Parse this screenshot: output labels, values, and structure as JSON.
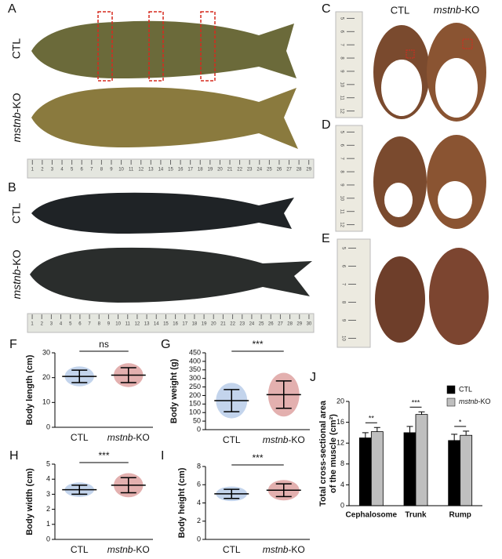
{
  "panel_a": {
    "label": "A",
    "rows": [
      "CTL",
      {
        "gene": "mstnb",
        "suffix": "-KO"
      }
    ],
    "ruler": [
      1,
      2,
      3,
      4,
      5,
      6,
      7,
      8,
      9,
      10,
      11,
      12,
      13,
      14,
      15,
      16,
      17,
      18,
      19,
      20,
      21,
      22,
      23,
      24,
      25,
      26,
      27,
      28,
      29
    ]
  },
  "panel_b": {
    "label": "B",
    "rows": [
      "CTL",
      {
        "gene": "mstnb",
        "suffix": "-KO"
      }
    ],
    "ruler": [
      1,
      2,
      3,
      4,
      5,
      6,
      7,
      8,
      9,
      10,
      11,
      12,
      13,
      14,
      15,
      16,
      17,
      18,
      19,
      20,
      21,
      22,
      23,
      24,
      25,
      26,
      27,
      28,
      29,
      30
    ]
  },
  "panel_c": {
    "label": "C",
    "columns": [
      "CTL",
      {
        "gene": "mstnb",
        "suffix": "-KO"
      }
    ],
    "ruler": [
      5,
      6,
      7,
      8,
      9,
      10,
      11,
      12
    ]
  },
  "panel_d": {
    "label": "D",
    "ruler": [
      5,
      6,
      7,
      8,
      9,
      10,
      11,
      12
    ]
  },
  "panel_e": {
    "label": "E",
    "ruler": [
      5,
      6,
      7,
      8,
      9,
      10
    ]
  },
  "chart_data": [
    {
      "type": "dot",
      "panel": "F",
      "ylabel": "Body length (cm)",
      "categories": [
        "CTL",
        {
          "gene": "mstnb",
          "suffix": "-KO"
        }
      ],
      "means": [
        20.5,
        21
      ],
      "sd": [
        2.5,
        3
      ],
      "colors": [
        "#7b9fd4",
        "#c0504d"
      ],
      "annotation": "ns",
      "ylim": [
        0,
        30
      ],
      "yticks": [
        0,
        10,
        20,
        30
      ]
    },
    {
      "type": "dot",
      "panel": "G",
      "ylabel": "Body weight (g)",
      "categories": [
        "CTL",
        {
          "gene": "mstnb",
          "suffix": "-KO"
        }
      ],
      "means": [
        170,
        205
      ],
      "sd": [
        65,
        80
      ],
      "colors": [
        "#7b9fd4",
        "#c0504d"
      ],
      "annotation": "***",
      "ylim": [
        0,
        450
      ],
      "yticks": [
        0,
        50,
        100,
        150,
        200,
        250,
        300,
        350,
        400,
        450
      ]
    },
    {
      "type": "dot",
      "panel": "H",
      "ylabel": "Body width (cm)",
      "categories": [
        "CTL",
        {
          "gene": "mstnb",
          "suffix": "-KO"
        }
      ],
      "means": [
        3.3,
        3.6
      ],
      "sd": [
        0.3,
        0.5
      ],
      "colors": [
        "#7b9fd4",
        "#c0504d"
      ],
      "annotation": "***",
      "ylim": [
        0,
        5
      ],
      "yticks": [
        0,
        1,
        2,
        3,
        4,
        5
      ]
    },
    {
      "type": "dot",
      "panel": "I",
      "ylabel": "Body height (cm)",
      "categories": [
        "CTL",
        {
          "gene": "mstnb",
          "suffix": "-KO"
        }
      ],
      "means": [
        5.0,
        5.4
      ],
      "sd": [
        0.5,
        0.7
      ],
      "colors": [
        "#7b9fd4",
        "#c0504d"
      ],
      "annotation": "***",
      "ylim": [
        0,
        8
      ],
      "yticks": [
        0,
        2,
        4,
        6,
        8
      ]
    },
    {
      "type": "bar",
      "panel": "J",
      "ylabel": [
        "Total cross-sectional area",
        "of the muscle (cm²)"
      ],
      "categories": [
        "Cephalosome",
        "Trunk",
        "Rump"
      ],
      "series": [
        {
          "name": "CTL",
          "color": "#000000",
          "values": [
            13,
            14,
            12.5
          ],
          "errors": [
            1,
            1.2,
            1.2
          ]
        },
        {
          "name": {
            "gene": "mstnb",
            "suffix": "-KO"
          },
          "color": "#bfbfbf",
          "values": [
            14.2,
            17.5,
            13.5
          ],
          "errors": [
            0.8,
            0.5,
            0.8
          ]
        }
      ],
      "annotations": [
        "**",
        "***",
        "*"
      ],
      "ylim": [
        0,
        20
      ],
      "yticks": [
        0,
        4,
        8,
        12,
        16,
        20
      ]
    }
  ]
}
